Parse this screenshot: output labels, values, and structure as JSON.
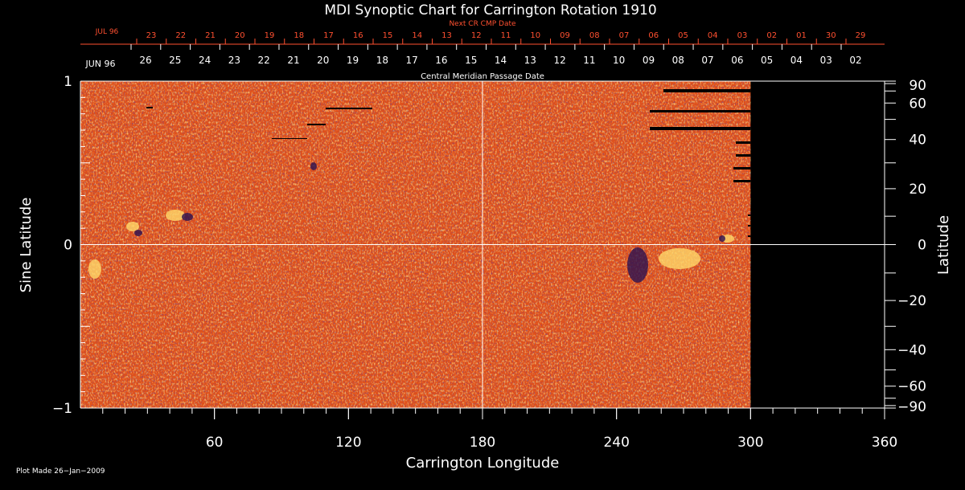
{
  "chart_data": {
    "type": "heatmap",
    "title": "MDI Synoptic Chart for Carrington Rotation 1910",
    "xlabel": "Carrington Longitude",
    "ylabel_left": "Sine Latitude",
    "ylabel_right": "Latitude",
    "xlim": [
      0,
      360
    ],
    "ylim": [
      -1,
      1
    ],
    "x_ticks": [
      60,
      120,
      180,
      240,
      300,
      360
    ],
    "y_left_ticks": [
      {
        "v": 1,
        "label": "1"
      },
      {
        "v": 0,
        "label": "0"
      },
      {
        "v": -1,
        "label": "−1"
      }
    ],
    "y_right_ticks": [
      "90",
      "60",
      "40",
      "20",
      "0",
      "−20",
      "−40",
      "−60",
      "−90"
    ],
    "y_right_values_deg": [
      90,
      60,
      40,
      20,
      0,
      -20,
      -40,
      -60,
      -90
    ],
    "grid_lines": {
      "x": 180,
      "y": 0
    },
    "data_extent_longitude": 300,
    "colors": {
      "background": "#000000",
      "map_base": "#e0501a",
      "map_light": "#ffd86a",
      "map_dark": "#2a1050",
      "next_cr_axis": "#ff5030",
      "axis": "#ffffff"
    },
    "cmp_axis_label": "Central Meridian Passage Date",
    "cmp_start_month": "JUN 96",
    "cmp_dates": [
      "26",
      "25",
      "24",
      "23",
      "22",
      "21",
      "20",
      "19",
      "18",
      "17",
      "16",
      "15",
      "14",
      "13",
      "12",
      "11",
      "10",
      "09",
      "08",
      "07",
      "06",
      "05",
      "04",
      "03",
      "02"
    ],
    "next_cr_axis_label": "Next CR CMP Date",
    "next_cr_start_month": "JUL 96",
    "next_cr_dates": [
      "23",
      "22",
      "21",
      "20",
      "19",
      "18",
      "17",
      "16",
      "15",
      "14",
      "13",
      "12",
      "11",
      "10",
      "09",
      "08",
      "07",
      "06",
      "05",
      "04",
      "03",
      "02",
      "01",
      "30",
      "29"
    ],
    "footer": "Plot Made 26−Jan−2009"
  }
}
